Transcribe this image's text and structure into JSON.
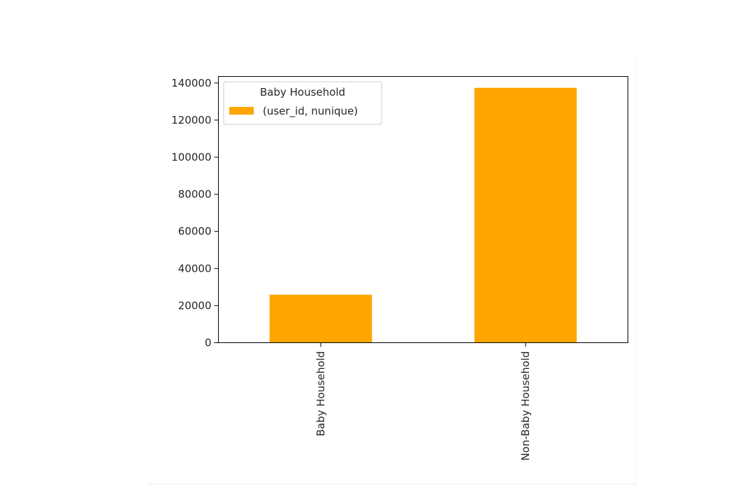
{
  "chart_data": {
    "type": "bar",
    "categories": [
      "Baby Household",
      "Non-Baby Household"
    ],
    "series": [
      {
        "name": "(user_id, nunique)",
        "values": [
          25900,
          137400
        ],
        "color": "#ffa500"
      }
    ],
    "ylim": [
      0,
      143500
    ],
    "yticks": [
      0,
      20000,
      40000,
      60000,
      80000,
      100000,
      120000,
      140000
    ],
    "ytick_labels": [
      "0",
      "20000",
      "40000",
      "60000",
      "80000",
      "100000",
      "120000",
      "140000"
    ],
    "legend": {
      "title": "Baby Household",
      "position": "top-left"
    },
    "grid": false,
    "xtick_rotation": "vertical"
  }
}
